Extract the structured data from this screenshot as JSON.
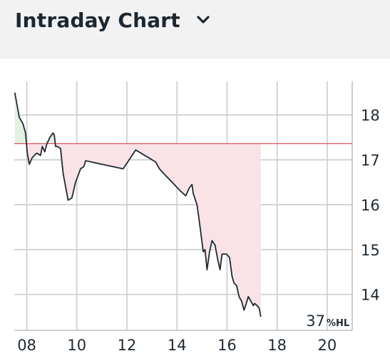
{
  "header": {
    "title": "Intraday Chart",
    "dropdown_icon": "chevron-down-icon"
  },
  "chart_data": {
    "type": "area",
    "title": "Intraday Chart",
    "x_unit": "hour",
    "xlim": [
      7.5,
      21.0
    ],
    "ylim": [
      13.2,
      18.75
    ],
    "x_ticks": [
      "08",
      "10",
      "12",
      "14",
      "16",
      "18",
      "20"
    ],
    "x_tick_values": [
      8,
      10,
      12,
      14,
      16,
      18,
      20
    ],
    "y_ticks": [
      "14",
      "15",
      "16",
      "17",
      "18"
    ],
    "y_tick_values": [
      14,
      15,
      16,
      17,
      18
    ],
    "reference_price": 17.36,
    "reference_color": "#d9505f",
    "fill_below_color": "#f9e3e6",
    "fill_above_color": "#e3f1e1",
    "line_color": "#1e2a33",
    "grid": true,
    "y_axis_position": "right",
    "high_low_percent": "37",
    "high_low_label": "%HL",
    "series": [
      {
        "x": [
          7.52,
          7.7,
          7.85,
          7.95,
          8.02,
          8.1,
          8.22,
          8.4,
          8.55,
          8.62,
          8.72,
          8.8,
          8.92,
          9.05,
          9.1,
          9.15,
          9.22,
          9.35,
          9.45,
          9.65,
          9.8,
          9.95,
          10.15,
          10.28,
          10.35,
          11.85,
          12.35,
          12.95,
          13.15,
          13.3,
          13.55,
          14.15,
          14.35,
          14.5,
          14.6,
          14.65,
          14.8,
          14.9,
          15.05,
          15.12,
          15.2,
          15.3,
          15.4,
          15.52,
          15.62,
          15.72,
          15.8,
          15.9,
          15.98,
          16.1,
          16.2,
          16.28,
          16.38,
          16.48,
          16.58,
          16.68,
          16.78,
          16.85,
          16.95,
          17.05,
          17.1,
          17.2,
          17.28,
          17.35
        ],
        "y": [
          18.5,
          17.95,
          17.8,
          17.6,
          17.15,
          16.9,
          17.05,
          17.15,
          17.1,
          17.3,
          17.18,
          17.35,
          17.5,
          17.6,
          17.55,
          17.3,
          17.3,
          17.25,
          16.7,
          16.1,
          16.15,
          16.5,
          16.8,
          16.85,
          16.98,
          16.8,
          17.22,
          17.02,
          16.95,
          16.8,
          16.65,
          16.3,
          16.2,
          16.38,
          16.45,
          16.25,
          16.0,
          15.6,
          14.95,
          15.0,
          14.55,
          14.95,
          15.2,
          15.1,
          14.8,
          14.55,
          14.9,
          14.9,
          14.9,
          14.82,
          14.4,
          14.25,
          14.2,
          13.95,
          13.85,
          13.65,
          13.82,
          13.95,
          13.85,
          13.75,
          13.8,
          13.75,
          13.7,
          13.5
        ]
      }
    ]
  }
}
